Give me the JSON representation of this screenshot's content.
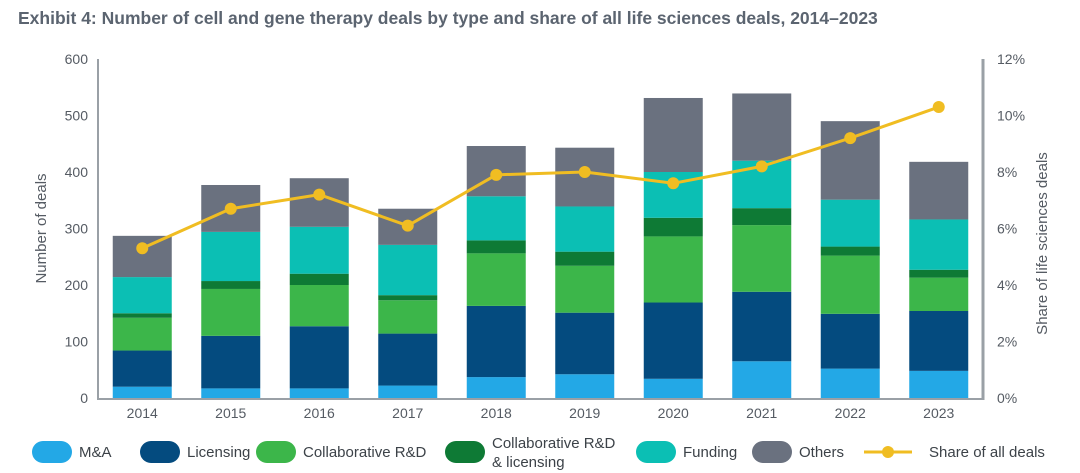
{
  "title": "Exhibit 4: Number of cell and gene therapy deals by type and share of all life sciences deals, 2014–2023",
  "chart_data": {
    "type": "bar",
    "stacked": true,
    "categories": [
      "2014",
      "2015",
      "2016",
      "2017",
      "2018",
      "2019",
      "2020",
      "2021",
      "2022",
      "2023"
    ],
    "series": [
      {
        "name": "M&A",
        "color": "#23a8e6",
        "values": [
          20,
          17,
          17,
          22,
          37,
          42,
          34,
          65,
          52,
          48
        ]
      },
      {
        "name": "Licensing",
        "color": "#044b7f",
        "values": [
          64,
          93,
          110,
          92,
          126,
          109,
          135,
          123,
          97,
          106
        ]
      },
      {
        "name": "Collaborative R&D",
        "color": "#3cb64a",
        "values": [
          58,
          83,
          73,
          59,
          93,
          83,
          117,
          118,
          103,
          59
        ]
      },
      {
        "name": "Collaborative R&D & licensing",
        "color": "#0e7a35",
        "values": [
          8,
          14,
          20,
          9,
          23,
          25,
          33,
          30,
          16,
          14
        ]
      },
      {
        "name": "Funding",
        "color": "#0bbfb4",
        "values": [
          64,
          87,
          83,
          89,
          78,
          80,
          81,
          84,
          83,
          89
        ]
      },
      {
        "name": "Others",
        "color": "#6a717f",
        "values": [
          73,
          83,
          86,
          64,
          89,
          104,
          131,
          119,
          139,
          102
        ]
      }
    ],
    "line_series": {
      "name": "Share of all deals",
      "color": "#f0bd22",
      "values": [
        5.3,
        6.7,
        7.2,
        6.1,
        7.9,
        8.0,
        7.6,
        8.2,
        9.2,
        10.3
      ]
    },
    "y_left": {
      "label": "Number of deals",
      "min": 0,
      "max": 600,
      "ticks": [
        "0",
        "100",
        "200",
        "300",
        "400",
        "500",
        "600"
      ]
    },
    "y_right": {
      "label": "Share of life sciences deals",
      "min": 0,
      "max": 12,
      "ticks": [
        "0%",
        "2%",
        "4%",
        "6%",
        "8%",
        "10%",
        "12%"
      ]
    },
    "legend": [
      "M&A",
      "Licensing",
      "Collaborative R&D",
      "Collaborative R&D & licensing",
      "Funding",
      "Others",
      "Share of all deals"
    ],
    "legend_position": "bottom"
  }
}
